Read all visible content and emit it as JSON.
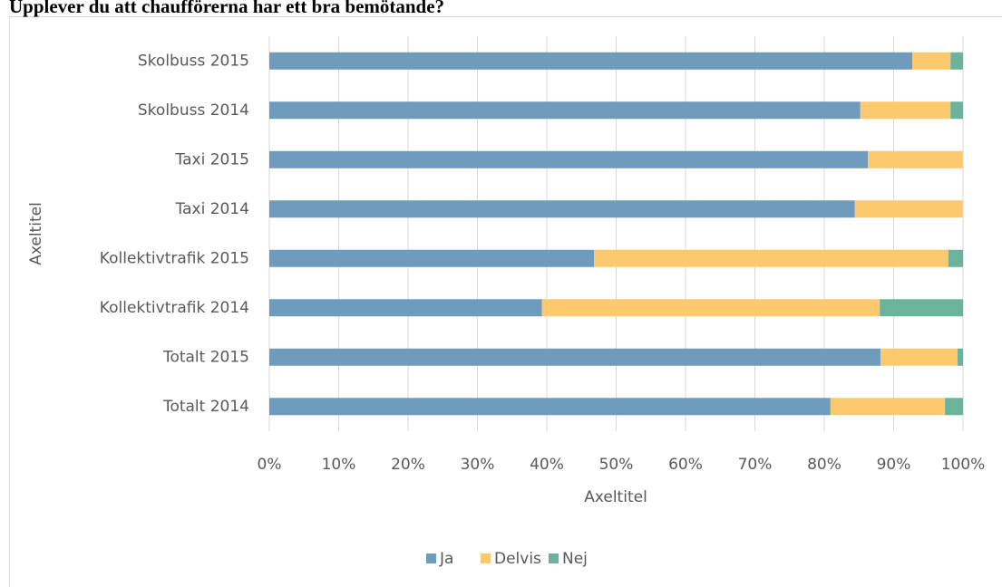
{
  "chart_data": {
    "type": "stacked_barh",
    "title": "Upplever du att chaufförerna har ett bra bemötande?",
    "x_label": "Axeltitel",
    "y_label": "Axeltitel",
    "categories": [
      "Skolbuss 2015",
      "Skolbuss 2014",
      "Taxi 2015",
      "Taxi 2014",
      "Kollektivtrafik 2015",
      "Kollektivtrafik 2014",
      "Totalt 2015",
      "Totalt 2014"
    ],
    "series": [
      {
        "name": "Ja",
        "color": "#6f9bbd",
        "values": [
          92.7,
          85.2,
          86.3,
          84.4,
          46.8,
          39.3,
          88.1,
          80.9
        ]
      },
      {
        "name": "Delvis",
        "color": "#fdc96f",
        "values": [
          5.5,
          13.0,
          13.7,
          15.6,
          51.1,
          48.7,
          11.1,
          16.5
        ]
      },
      {
        "name": "Nej",
        "color": "#6bb39a",
        "values": [
          1.8,
          1.8,
          0,
          0,
          2.1,
          12.0,
          0.8,
          2.6
        ]
      }
    ],
    "xlim": [
      0,
      100
    ],
    "xticks": [
      {
        "value": 0,
        "label": "0%"
      },
      {
        "value": 10,
        "label": "10%"
      },
      {
        "value": 20,
        "label": "20%"
      },
      {
        "value": 30,
        "label": "30%"
      },
      {
        "value": 40,
        "label": "40%"
      },
      {
        "value": 50,
        "label": "50%"
      },
      {
        "value": 60,
        "label": "60%"
      },
      {
        "value": 70,
        "label": "70%"
      },
      {
        "value": 80,
        "label": "80%"
      },
      {
        "value": 90,
        "label": "90%"
      },
      {
        "value": 100,
        "label": "100%"
      }
    ],
    "grid": true,
    "legend": "bottom"
  }
}
